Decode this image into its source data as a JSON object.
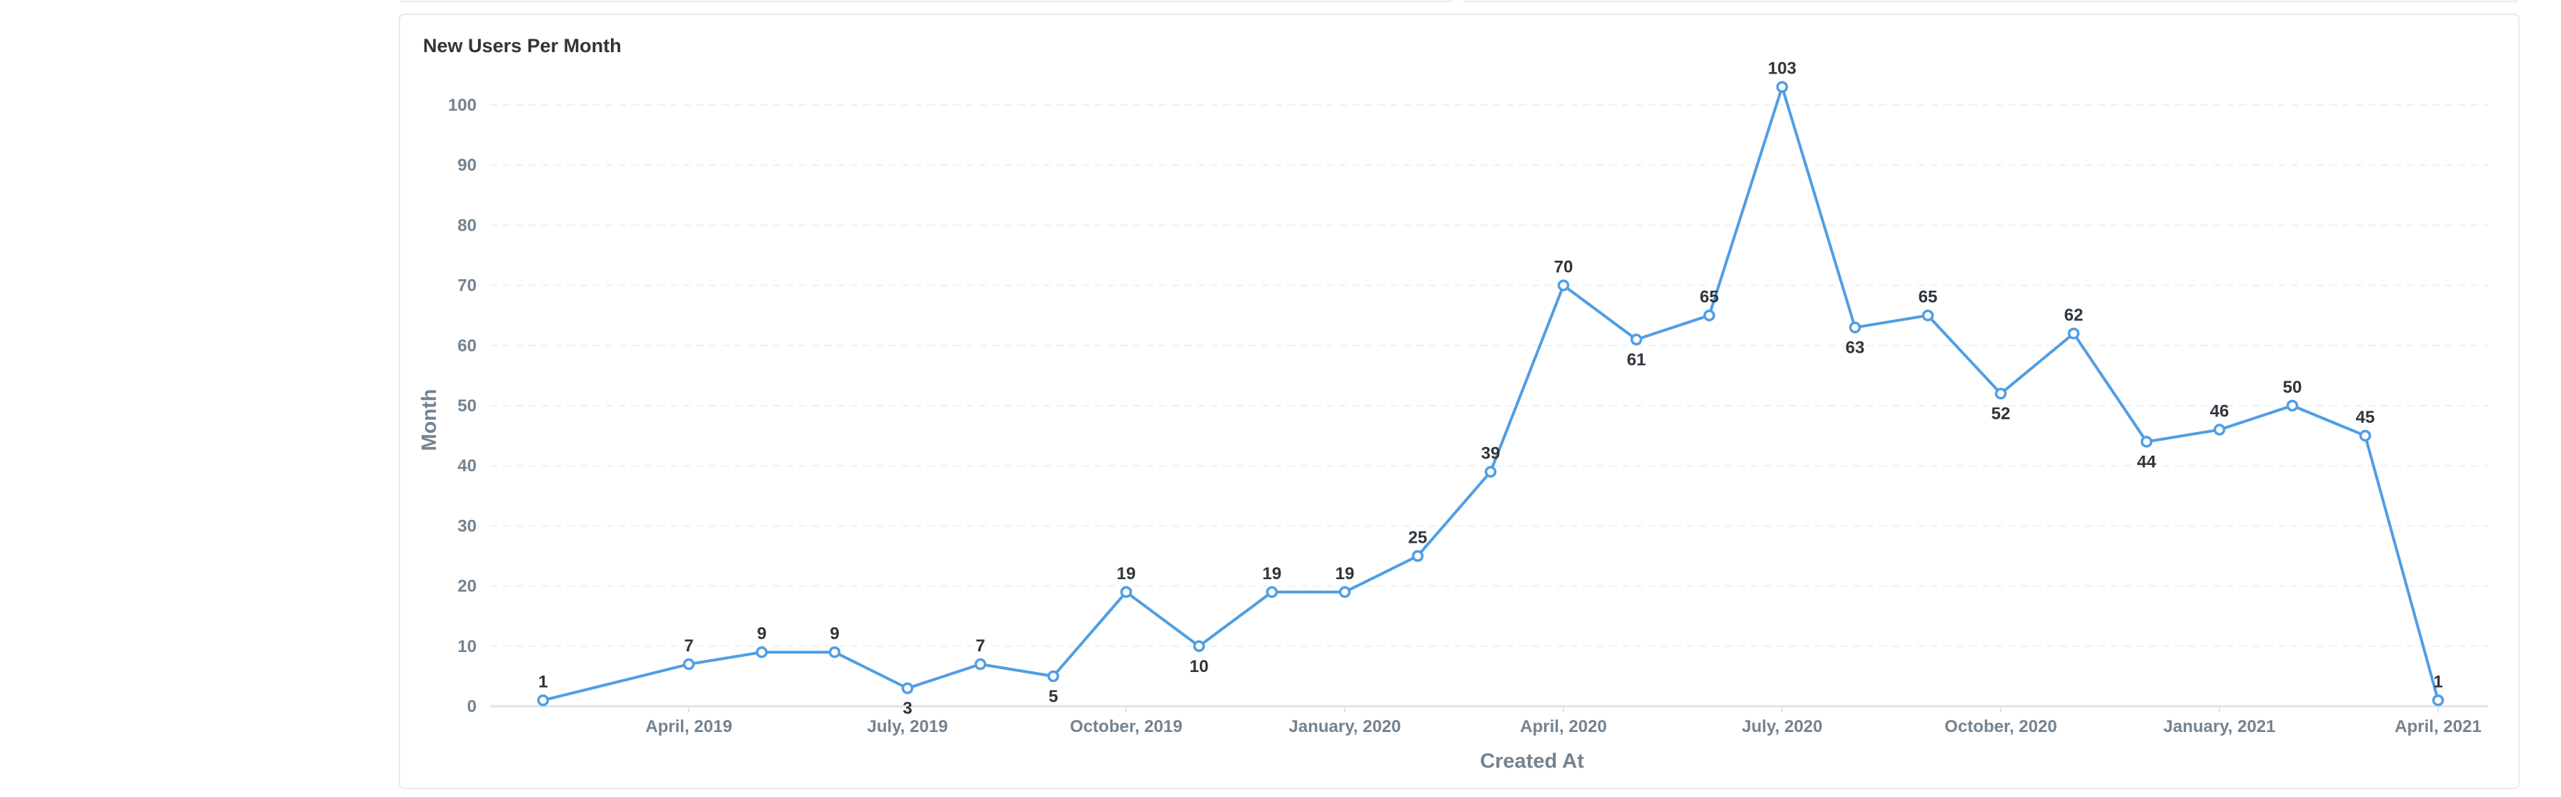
{
  "card": {
    "title": "New Users Per Month"
  },
  "colors": {
    "series": "#509ee3",
    "grid": "#edf0f2",
    "axis": "#dfe3e8",
    "tick_text": "#74838f",
    "label_text": "#2e353b"
  },
  "chart_data": {
    "type": "line",
    "title": "New Users Per Month",
    "xlabel": "Created At",
    "ylabel": "Month",
    "ylim": [
      0,
      100
    ],
    "yticks": [
      0,
      10,
      20,
      30,
      40,
      50,
      60,
      70,
      80,
      90,
      100
    ],
    "xticks": [
      {
        "label": "April, 2019",
        "month": "2019-04"
      },
      {
        "label": "July, 2019",
        "month": "2019-07"
      },
      {
        "label": "October, 2019",
        "month": "2019-10"
      },
      {
        "label": "January, 2020",
        "month": "2020-01"
      },
      {
        "label": "April, 2020",
        "month": "2020-04"
      },
      {
        "label": "July, 2020",
        "month": "2020-07"
      },
      {
        "label": "October, 2020",
        "month": "2020-10"
      },
      {
        "label": "January, 2021",
        "month": "2021-01"
      },
      {
        "label": "April, 2021",
        "month": "2021-04"
      }
    ],
    "grid": true,
    "legend": "none",
    "series": [
      {
        "points": [
          {
            "month": "2019-02",
            "value": 1
          },
          {
            "month": "2019-04",
            "value": 7
          },
          {
            "month": "2019-05",
            "value": 9
          },
          {
            "month": "2019-06",
            "value": 9
          },
          {
            "month": "2019-07",
            "value": 3
          },
          {
            "month": "2019-08",
            "value": 7
          },
          {
            "month": "2019-09",
            "value": 5
          },
          {
            "month": "2019-10",
            "value": 19
          },
          {
            "month": "2019-11",
            "value": 10
          },
          {
            "month": "2019-12",
            "value": 19
          },
          {
            "month": "2020-01",
            "value": 19
          },
          {
            "month": "2020-02",
            "value": 25
          },
          {
            "month": "2020-03",
            "value": 39
          },
          {
            "month": "2020-04",
            "value": 70
          },
          {
            "month": "2020-05",
            "value": 61
          },
          {
            "month": "2020-06",
            "value": 65
          },
          {
            "month": "2020-07",
            "value": 103
          },
          {
            "month": "2020-08",
            "value": 63
          },
          {
            "month": "2020-09",
            "value": 65
          },
          {
            "month": "2020-10",
            "value": 52
          },
          {
            "month": "2020-11",
            "value": 62
          },
          {
            "month": "2020-12",
            "value": 44
          },
          {
            "month": "2021-01",
            "value": 46
          },
          {
            "month": "2021-02",
            "value": 50
          },
          {
            "month": "2021-03",
            "value": 45
          },
          {
            "month": "2021-04",
            "value": 1
          }
        ]
      }
    ]
  }
}
